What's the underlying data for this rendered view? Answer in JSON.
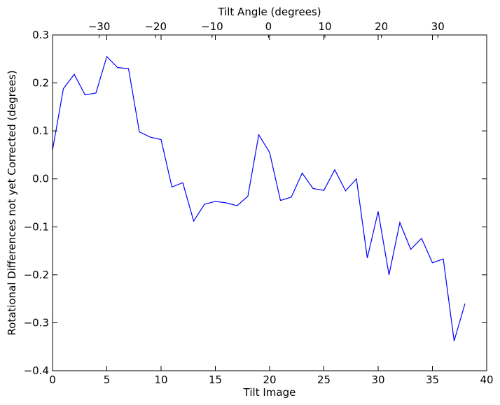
{
  "chart_data": {
    "type": "line",
    "xlabel": "Tilt Image",
    "ylabel": "Rotational Differences not yet Corrected (degrees)",
    "top_xlabel": "Tilt Angle (degrees)",
    "xlim": [
      0,
      40
    ],
    "ylim": [
      -0.4,
      0.3
    ],
    "x_ticks": [
      0,
      5,
      10,
      15,
      20,
      25,
      30,
      35,
      40
    ],
    "x_tick_labels": [
      "0",
      "5",
      "10",
      "15",
      "20",
      "25",
      "30",
      "35",
      "40"
    ],
    "y_ticks": [
      0.3,
      0.2,
      0.1,
      0.0,
      -0.1,
      -0.2,
      -0.3,
      -0.4
    ],
    "y_tick_labels": [
      "0.3",
      "0.2",
      "0.1",
      "0.0",
      "−0.1",
      "−0.2",
      "−0.3",
      "−0.4"
    ],
    "top_ticks": [
      {
        "label": "−30",
        "image": 4.3
      },
      {
        "label": "−20",
        "image": 9.5
      },
      {
        "label": "−10",
        "image": 14.7
      },
      {
        "label": "0",
        "image": 19.9
      },
      {
        "label": "10",
        "image": 25.1
      },
      {
        "label": "20",
        "image": 30.3
      },
      {
        "label": "30",
        "image": 35.5
      }
    ],
    "grid": false,
    "series": [
      {
        "color": "#0000ff",
        "x": [
          0,
          1,
          2,
          3,
          4,
          5,
          6,
          7,
          8,
          9,
          10,
          11,
          12,
          13,
          14,
          15,
          16,
          17,
          18,
          19,
          20,
          21,
          22,
          23,
          24,
          25,
          26,
          27,
          28,
          29,
          30,
          31,
          32,
          33,
          34,
          35,
          36,
          37,
          38
        ],
        "y": [
          0.06,
          0.188,
          0.218,
          0.175,
          0.179,
          0.255,
          0.232,
          0.23,
          0.098,
          0.087,
          0.082,
          -0.017,
          -0.008,
          -0.088,
          -0.053,
          -0.047,
          -0.05,
          -0.056,
          -0.036,
          0.092,
          0.055,
          -0.045,
          -0.038,
          0.012,
          -0.02,
          -0.024,
          0.019,
          -0.025,
          0.0,
          -0.165,
          -0.068,
          -0.2,
          -0.091,
          -0.147,
          -0.124,
          -0.175,
          -0.167,
          -0.338,
          -0.26
        ]
      }
    ]
  }
}
